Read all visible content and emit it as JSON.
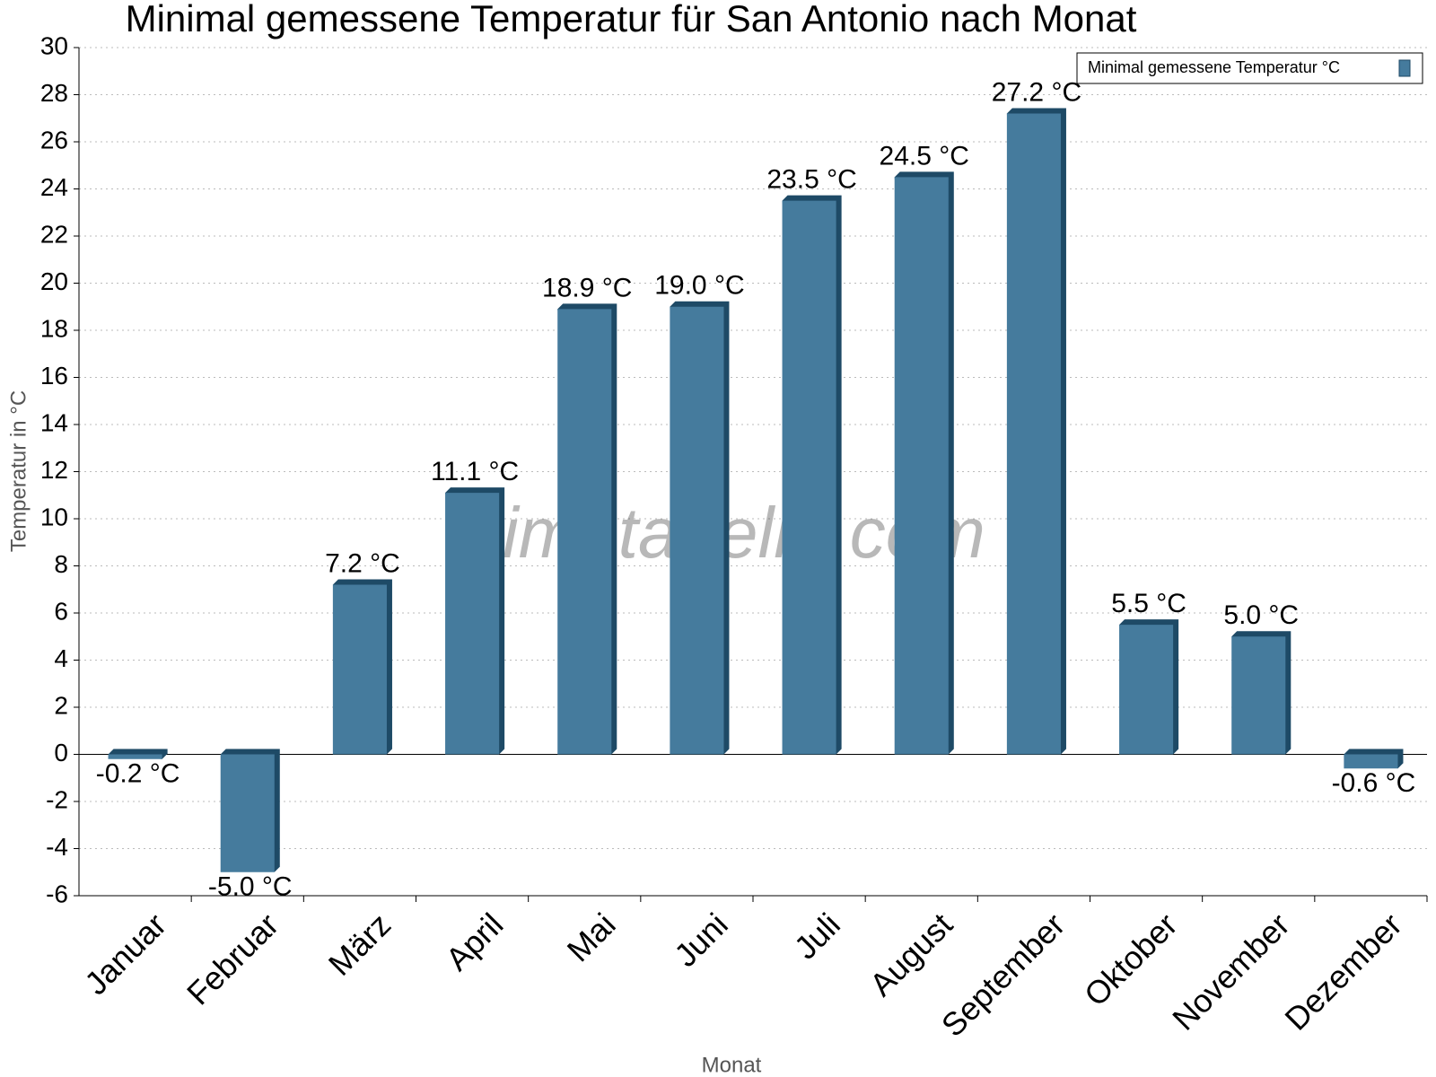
{
  "chart_data": {
    "type": "bar",
    "title": "Minimal gemessene Temperatur für San Antonio nach Monat",
    "watermark": "klimatabelle.com",
    "x_label": "Monat",
    "y_label": "Temperatur in °C",
    "categories": [
      "Januar",
      "Februar",
      "März",
      "April",
      "Mai",
      "Juni",
      "Juli",
      "August",
      "September",
      "Oktober",
      "November",
      "Dezember"
    ],
    "series": [
      {
        "name": "Minimal gemessene Temperatur °C",
        "color": "#457b9d",
        "values": [
          -0.2,
          -5.0,
          7.2,
          11.1,
          18.9,
          19.0,
          23.5,
          24.5,
          27.2,
          5.5,
          5.0,
          -0.6
        ],
        "value_labels": [
          "-0.2 °C",
          "-5.0 °C",
          "7.2 °C",
          "11.1 °C",
          "18.9 °C",
          "19.0 °C",
          "23.5 °C",
          "24.5 °C",
          "27.2 °C",
          "5.5 °C",
          "5.0 °C",
          "-0.6 °C"
        ]
      }
    ],
    "ylim": [
      -6,
      30
    ],
    "yticks": [
      -6,
      -4,
      -2,
      0,
      2,
      4,
      6,
      8,
      10,
      12,
      14,
      16,
      18,
      20,
      22,
      24,
      26,
      28,
      30
    ],
    "grid": true,
    "legend": "top-right"
  }
}
